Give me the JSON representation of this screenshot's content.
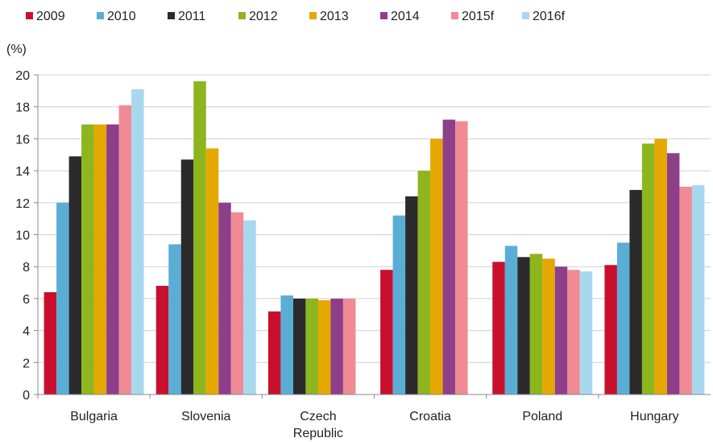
{
  "chart_data": {
    "type": "bar",
    "title": "",
    "xlabel": "",
    "ylabel": "(%)",
    "ylim": [
      0,
      20
    ],
    "yticks": [
      0,
      2,
      4,
      6,
      8,
      10,
      12,
      14,
      16,
      18,
      20
    ],
    "grid": true,
    "legend_position": "top",
    "categories": [
      "Bulgaria",
      "Slovenia",
      "Czech Republic",
      "Croatia",
      "Poland",
      "Hungary"
    ],
    "category_labels": [
      [
        "Bulgaria"
      ],
      [
        "Slovenia"
      ],
      [
        "Czech",
        "Republic"
      ],
      [
        "Croatia"
      ],
      [
        "Poland"
      ],
      [
        "Hungary"
      ]
    ],
    "series": [
      {
        "name": "2009",
        "color": "#c8102e",
        "values": [
          6.4,
          6.8,
          5.2,
          7.8,
          8.3,
          8.1
        ]
      },
      {
        "name": "2010",
        "color": "#5aaed6",
        "values": [
          12.0,
          9.4,
          6.2,
          11.2,
          9.3,
          9.5
        ]
      },
      {
        "name": "2011",
        "color": "#2b2b2b",
        "values": [
          14.9,
          14.7,
          6.0,
          12.4,
          8.6,
          12.8
        ]
      },
      {
        "name": "2012",
        "color": "#8db51e",
        "values": [
          16.9,
          19.6,
          6.0,
          14.0,
          8.8,
          15.7
        ]
      },
      {
        "name": "2013",
        "color": "#e5a800",
        "values": [
          16.9,
          15.4,
          5.9,
          16.0,
          8.5,
          16.0
        ]
      },
      {
        "name": "2014",
        "color": "#8e3f8a",
        "values": [
          16.9,
          12.0,
          6.0,
          17.2,
          8.0,
          15.1
        ]
      },
      {
        "name": "2015f",
        "color": "#f08b95",
        "values": [
          18.1,
          11.4,
          6.0,
          17.1,
          7.8,
          13.0
        ]
      },
      {
        "name": "2016f",
        "color": "#a8d8ee",
        "values": [
          19.1,
          10.9,
          null,
          null,
          7.7,
          13.1
        ]
      }
    ]
  }
}
